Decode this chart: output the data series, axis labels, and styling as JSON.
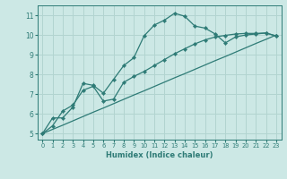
{
  "xlabel": "Humidex (Indice chaleur)",
  "xlim": [
    -0.5,
    23.5
  ],
  "ylim": [
    4.7,
    11.5
  ],
  "xticks": [
    0,
    1,
    2,
    3,
    4,
    5,
    6,
    7,
    8,
    9,
    10,
    11,
    12,
    13,
    14,
    15,
    16,
    17,
    18,
    19,
    20,
    21,
    22,
    23
  ],
  "yticks": [
    5,
    6,
    7,
    8,
    9,
    10,
    11
  ],
  "bg_color": "#cce8e5",
  "grid_color": "#b2d4d0",
  "line_color": "#2e7b76",
  "line1_x": [
    0,
    1,
    2,
    3,
    4,
    5,
    6,
    7,
    8,
    9,
    10,
    11,
    12,
    13,
    14,
    15,
    16,
    17,
    18,
    19,
    20,
    21,
    22,
    23
  ],
  "line1_y": [
    5.0,
    5.8,
    5.8,
    6.35,
    7.55,
    7.45,
    7.05,
    7.75,
    8.45,
    8.85,
    9.95,
    10.5,
    10.75,
    11.1,
    10.95,
    10.45,
    10.35,
    10.05,
    9.6,
    9.9,
    10.0,
    10.05,
    10.1,
    9.95
  ],
  "line2_x": [
    0,
    1,
    2,
    3,
    4,
    5,
    6,
    7,
    8,
    9,
    10,
    11,
    12,
    13,
    14,
    15,
    16,
    17,
    18,
    19,
    20,
    21,
    22,
    23
  ],
  "line2_y": [
    5.0,
    5.22,
    5.43,
    5.65,
    5.87,
    6.09,
    6.3,
    6.52,
    6.74,
    6.96,
    7.17,
    7.39,
    7.61,
    7.83,
    8.04,
    8.26,
    8.48,
    8.7,
    8.91,
    9.13,
    9.35,
    9.57,
    9.78,
    10.0
  ],
  "line3_x": [
    0,
    1,
    2,
    3,
    4,
    5,
    6,
    7,
    8,
    9,
    10,
    11,
    12,
    13,
    14,
    15,
    16,
    17,
    18,
    19,
    20,
    21,
    22,
    23
  ],
  "line3_y": [
    5.0,
    5.4,
    6.15,
    6.45,
    7.2,
    7.4,
    6.65,
    6.75,
    7.6,
    7.9,
    8.15,
    8.45,
    8.75,
    9.05,
    9.3,
    9.55,
    9.75,
    9.9,
    9.98,
    10.05,
    10.08,
    10.08,
    10.1,
    9.95
  ]
}
